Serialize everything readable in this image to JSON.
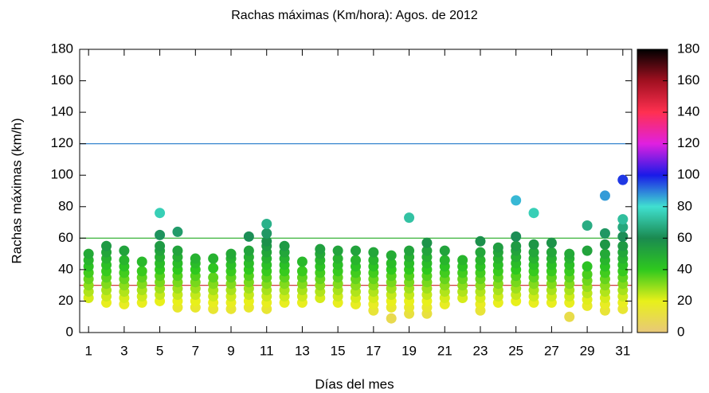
{
  "chart_data": {
    "type": "scatter",
    "title": "Rachas máximas (Km/hora):    Agos.  de  2012",
    "x_label": "Días del mes",
    "y_label": "Rachas máximas (km/h)",
    "xlim": [
      0.5,
      31.5
    ],
    "xticks": [
      1,
      3,
      5,
      7,
      9,
      11,
      13,
      15,
      17,
      19,
      21,
      23,
      25,
      27,
      29,
      31
    ],
    "ylim": [
      0,
      180
    ],
    "yticks": [
      0,
      20,
      40,
      60,
      80,
      100,
      120,
      140,
      160,
      180
    ],
    "colorbar_lim": [
      0,
      180
    ],
    "colorbar_ticks": [
      0,
      20,
      40,
      60,
      80,
      100,
      120,
      140,
      160,
      180
    ],
    "colormap": [
      {
        "value": 0,
        "color": "#e8c87a"
      },
      {
        "value": 20,
        "color": "#e8f01a"
      },
      {
        "value": 40,
        "color": "#2ec81e"
      },
      {
        "value": 60,
        "color": "#1a8a50"
      },
      {
        "value": 80,
        "color": "#40e0d0"
      },
      {
        "value": 100,
        "color": "#1a1ae8"
      },
      {
        "value": 120,
        "color": "#e020e0"
      },
      {
        "value": 140,
        "color": "#ff3050"
      },
      {
        "value": 160,
        "color": "#a01020"
      },
      {
        "value": 180,
        "color": "#000000"
      }
    ],
    "reference_lines": [
      {
        "value": 120,
        "color": "#1f78c8"
      },
      {
        "value": 60,
        "color": "#22aa22"
      },
      {
        "value": 30,
        "color": "#cc2222"
      }
    ],
    "days": [
      {
        "x": 1,
        "values": [
          22,
          26,
          30,
          34,
          38,
          42,
          46,
          50
        ]
      },
      {
        "x": 2,
        "values": [
          19,
          23,
          27,
          31,
          35,
          39,
          43,
          47,
          51,
          55
        ]
      },
      {
        "x": 3,
        "values": [
          18,
          22,
          26,
          30,
          34,
          38,
          42,
          46,
          52
        ]
      },
      {
        "x": 4,
        "values": [
          19,
          23,
          27,
          31,
          35,
          39,
          45
        ]
      },
      {
        "x": 5,
        "values": [
          20,
          24,
          28,
          32,
          36,
          40,
          44,
          48,
          52,
          55,
          62,
          76
        ]
      },
      {
        "x": 6,
        "values": [
          16,
          20,
          24,
          28,
          32,
          36,
          40,
          44,
          48,
          52,
          64
        ]
      },
      {
        "x": 7,
        "values": [
          16,
          20,
          24,
          28,
          32,
          36,
          40,
          44,
          47
        ]
      },
      {
        "x": 8,
        "values": [
          15,
          19,
          23,
          27,
          31,
          35,
          41,
          47
        ]
      },
      {
        "x": 9,
        "values": [
          15,
          19,
          23,
          27,
          31,
          35,
          39,
          43,
          47,
          50
        ]
      },
      {
        "x": 10,
        "values": [
          16,
          20,
          24,
          28,
          32,
          36,
          40,
          44,
          48,
          52,
          61
        ]
      },
      {
        "x": 11,
        "values": [
          15,
          19,
          23,
          27,
          31,
          35,
          39,
          43,
          47,
          51,
          55,
          58,
          63,
          69
        ]
      },
      {
        "x": 12,
        "values": [
          19,
          23,
          27,
          31,
          35,
          39,
          43,
          47,
          51,
          55
        ]
      },
      {
        "x": 13,
        "values": [
          19,
          23,
          27,
          31,
          35,
          39,
          45
        ]
      },
      {
        "x": 14,
        "values": [
          22,
          26,
          30,
          34,
          38,
          42,
          46,
          50,
          53
        ]
      },
      {
        "x": 15,
        "values": [
          19,
          23,
          27,
          31,
          35,
          39,
          43,
          47,
          52
        ]
      },
      {
        "x": 16,
        "values": [
          18,
          22,
          26,
          30,
          34,
          38,
          42,
          46,
          52
        ]
      },
      {
        "x": 17,
        "values": [
          14,
          18,
          22,
          26,
          30,
          34,
          38,
          42,
          46,
          51
        ]
      },
      {
        "x": 18,
        "values": [
          9,
          16,
          20,
          24,
          28,
          32,
          36,
          40,
          44,
          49
        ]
      },
      {
        "x": 19,
        "values": [
          12,
          16,
          20,
          24,
          28,
          32,
          36,
          40,
          44,
          48,
          52,
          73
        ]
      },
      {
        "x": 20,
        "values": [
          12,
          16,
          20,
          24,
          28,
          32,
          36,
          40,
          44,
          48,
          52,
          57
        ]
      },
      {
        "x": 21,
        "values": [
          18,
          22,
          26,
          30,
          34,
          38,
          42,
          46,
          52
        ]
      },
      {
        "x": 22,
        "values": [
          22,
          26,
          30,
          34,
          38,
          42,
          46
        ]
      },
      {
        "x": 23,
        "values": [
          14,
          18,
          22,
          26,
          30,
          34,
          38,
          42,
          46,
          51,
          58
        ]
      },
      {
        "x": 24,
        "values": [
          19,
          23,
          27,
          31,
          35,
          39,
          43,
          47,
          51,
          54
        ]
      },
      {
        "x": 25,
        "values": [
          20,
          24,
          28,
          32,
          36,
          40,
          44,
          48,
          52,
          55,
          61,
          84
        ]
      },
      {
        "x": 26,
        "values": [
          19,
          23,
          27,
          31,
          35,
          39,
          43,
          47,
          51,
          56,
          76
        ]
      },
      {
        "x": 27,
        "values": [
          19,
          23,
          27,
          31,
          35,
          39,
          43,
          47,
          51,
          57
        ]
      },
      {
        "x": 28,
        "values": [
          10,
          19,
          23,
          27,
          31,
          35,
          39,
          43,
          47,
          50
        ]
      },
      {
        "x": 29,
        "values": [
          17,
          21,
          25,
          29,
          33,
          37,
          42,
          52,
          68
        ]
      },
      {
        "x": 30,
        "values": [
          14,
          18,
          22,
          26,
          30,
          34,
          38,
          42,
          46,
          50,
          56,
          63,
          87
        ]
      },
      {
        "x": 31,
        "values": [
          15,
          19,
          23,
          27,
          31,
          35,
          39,
          43,
          47,
          51,
          55,
          61,
          67,
          72,
          97
        ]
      }
    ]
  }
}
